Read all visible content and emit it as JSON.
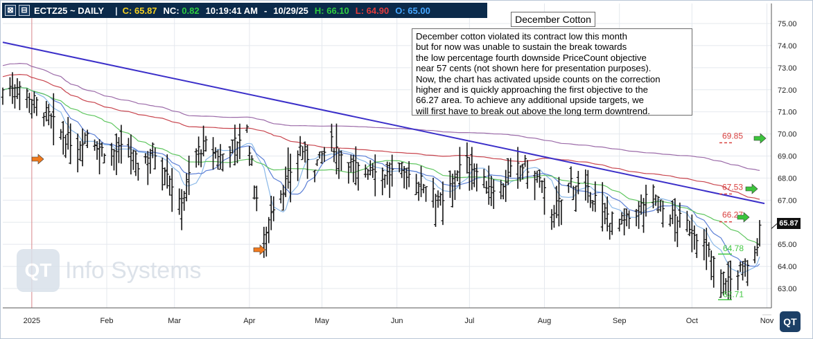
{
  "header": {
    "symbol_label": "ECTZ25 ~ DAILY",
    "c_label": "C: 65.87",
    "nc_label": "NC: 0.82",
    "time": "10:19:41 AM",
    "dash1": "-",
    "date": "10/29/25",
    "h_label": "H: 66.10",
    "l_label": "L: 64.90",
    "o_label": "O: 65.00",
    "separator": "|",
    "close_icon": "⊠",
    "minus_icon": "⊟"
  },
  "annotation": {
    "title": "December Cotton",
    "lines": [
      "December cotton violated its contract low this month",
      "but for now was unable to sustain the break towards",
      "the low percentage fourth downside PriceCount objective",
      "near 57 cents (not shown here for presentation purposes).",
      "Now, the chart has activated upside counts on the correction",
      "higher and is quickly approaching the first objective to the",
      "66.27 area.  To achieve any additional upside targets, we",
      "will first have to break out above the long term downtrend."
    ]
  },
  "last_price_tag": "65.87",
  "watermark": {
    "logo": "QT",
    "text": "Info Systems"
  },
  "corner_logo": "QT",
  "colors": {
    "header_bg": "#0b2a4a",
    "c": "#f5d020",
    "nc": "#2ecc40",
    "h": "#2ecc40",
    "l": "#e23b3b",
    "o": "#45a6ff",
    "target_red": "#d9413f",
    "target_green": "#42c742",
    "trendline": "#3b2fc9",
    "ma_purple": "#9b6aa8",
    "ma_red": "#c8444d",
    "ma_green": "#5fc65f",
    "ma_blue": "#5b7fd6",
    "ma_light_blue": "#8ab8e8"
  },
  "chart_data": {
    "type": "ohlc",
    "ylim": [
      62.5,
      75.5
    ],
    "y_ticks": [
      "63.00",
      "64.00",
      "65.00",
      "66.00",
      "67.00",
      "68.00",
      "69.00",
      "70.00",
      "71.00",
      "72.00",
      "73.00",
      "74.00",
      "75.00"
    ],
    "x_tick_labels": [
      "2025",
      "Feb",
      "Mar",
      "Apr",
      "May",
      "Jun",
      "Jul",
      "Aug",
      "Sep",
      "Oct",
      "Nov"
    ],
    "targets": [
      {
        "label": "69.85",
        "value": 69.85,
        "color": "red"
      },
      {
        "label": "67.53",
        "value": 67.53,
        "color": "red"
      },
      {
        "label": "66.27",
        "value": 66.27,
        "color": "red"
      },
      {
        "label": "64.78",
        "value": 64.78,
        "color": "green"
      },
      {
        "label": "62.71",
        "value": 62.71,
        "color": "green"
      }
    ],
    "trendline": {
      "from": {
        "date": "2024-12-20",
        "value": 74.15
      },
      "to": {
        "date": "2025-10-31",
        "value": 66.85
      }
    },
    "price_series": [
      {
        "date": "2024-12-20",
        "close": 72.0
      },
      {
        "date": "2024-12-26",
        "close": 72.3
      },
      {
        "date": "2025-01-02",
        "close": 71.5
      },
      {
        "date": "2025-01-08",
        "close": 70.8
      },
      {
        "date": "2025-01-14",
        "close": 69.9
      },
      {
        "date": "2025-01-20",
        "close": 69.5
      },
      {
        "date": "2025-01-24",
        "close": 70.1
      },
      {
        "date": "2025-01-30",
        "close": 69.3
      },
      {
        "date": "2025-02-05",
        "close": 69.2
      },
      {
        "date": "2025-02-10",
        "close": 69.4
      },
      {
        "date": "2025-02-14",
        "close": 68.6
      },
      {
        "date": "2025-02-20",
        "close": 69.3
      },
      {
        "date": "2025-02-26",
        "close": 68.4
      },
      {
        "date": "2025-03-03",
        "close": 66.8
      },
      {
        "date": "2025-03-05",
        "close": 67.4
      },
      {
        "date": "2025-03-10",
        "close": 69.2
      },
      {
        "date": "2025-03-14",
        "close": 69.5
      },
      {
        "date": "2025-03-20",
        "close": 69.0
      },
      {
        "date": "2025-03-26",
        "close": 69.6
      },
      {
        "date": "2025-03-31",
        "close": 70.2
      },
      {
        "date": "2025-04-03",
        "close": 67.8
      },
      {
        "date": "2025-04-07",
        "close": 65.2
      },
      {
        "date": "2025-04-10",
        "close": 66.6
      },
      {
        "date": "2025-04-16",
        "close": 67.8
      },
      {
        "date": "2025-04-22",
        "close": 69.4
      },
      {
        "date": "2025-04-28",
        "close": 68.6
      },
      {
        "date": "2025-05-05",
        "close": 69.6
      },
      {
        "date": "2025-05-10",
        "close": 69.0
      },
      {
        "date": "2025-05-16",
        "close": 68.4
      },
      {
        "date": "2025-05-22",
        "close": 68.6
      },
      {
        "date": "2025-05-28",
        "close": 68.2
      },
      {
        "date": "2025-06-03",
        "close": 68.4
      },
      {
        "date": "2025-06-10",
        "close": 67.9
      },
      {
        "date": "2025-06-16",
        "close": 67.6
      },
      {
        "date": "2025-06-20",
        "close": 66.8
      },
      {
        "date": "2025-06-26",
        "close": 68.4
      },
      {
        "date": "2025-07-01",
        "close": 68.8
      },
      {
        "date": "2025-07-07",
        "close": 67.8
      },
      {
        "date": "2025-07-14",
        "close": 67.6
      },
      {
        "date": "2025-07-18",
        "close": 68.3
      },
      {
        "date": "2025-07-24",
        "close": 68.6
      },
      {
        "date": "2025-07-30",
        "close": 67.9
      },
      {
        "date": "2025-08-04",
        "close": 66.5
      },
      {
        "date": "2025-08-08",
        "close": 67.0
      },
      {
        "date": "2025-08-12",
        "close": 67.9
      },
      {
        "date": "2025-08-18",
        "close": 67.4
      },
      {
        "date": "2025-08-22",
        "close": 67.1
      },
      {
        "date": "2025-08-28",
        "close": 66.2
      },
      {
        "date": "2025-09-03",
        "close": 66.0
      },
      {
        "date": "2025-09-09",
        "close": 66.6
      },
      {
        "date": "2025-09-15",
        "close": 67.4
      },
      {
        "date": "2025-09-19",
        "close": 66.6
      },
      {
        "date": "2025-09-25",
        "close": 66.2
      },
      {
        "date": "2025-10-01",
        "close": 65.8
      },
      {
        "date": "2025-10-07",
        "close": 64.8
      },
      {
        "date": "2025-10-13",
        "close": 63.6
      },
      {
        "date": "2025-10-17",
        "close": 63.4
      },
      {
        "date": "2025-10-22",
        "close": 64.0
      },
      {
        "date": "2025-10-27",
        "close": 64.4
      },
      {
        "date": "2025-10-29",
        "close": 65.87
      }
    ]
  }
}
